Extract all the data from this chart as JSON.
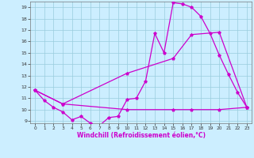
{
  "title": "",
  "xlabel": "Windchill (Refroidissement éolien,°C)",
  "bg_color": "#cceeff",
  "grid_color": "#99ccdd",
  "line_color": "#cc00cc",
  "xlim": [
    -0.5,
    23.5
  ],
  "ylim": [
    8.8,
    19.5
  ],
  "yticks": [
    9,
    10,
    11,
    12,
    13,
    14,
    15,
    16,
    17,
    18,
    19
  ],
  "xticks": [
    0,
    1,
    2,
    3,
    4,
    5,
    6,
    7,
    8,
    9,
    10,
    11,
    12,
    13,
    14,
    15,
    16,
    17,
    18,
    19,
    20,
    21,
    22,
    23
  ],
  "line1_x": [
    0,
    1,
    2,
    3,
    4,
    5,
    6,
    7,
    8,
    9,
    10,
    11,
    12,
    13,
    14,
    15,
    16,
    17,
    18,
    19,
    20,
    21,
    22,
    23
  ],
  "line1_y": [
    11.7,
    10.8,
    10.2,
    9.8,
    9.1,
    9.4,
    8.8,
    8.6,
    9.3,
    9.4,
    10.9,
    11.0,
    12.5,
    16.7,
    15.0,
    19.4,
    19.3,
    19.0,
    18.2,
    16.7,
    14.8,
    13.1,
    11.5,
    10.2
  ],
  "line2_x": [
    0,
    3,
    10,
    15,
    17,
    20,
    23
  ],
  "line2_y": [
    11.7,
    10.5,
    13.2,
    14.5,
    16.6,
    16.8,
    10.2
  ],
  "line3_x": [
    0,
    3,
    10,
    15,
    17,
    20,
    23
  ],
  "line3_y": [
    11.7,
    10.5,
    10.0,
    10.0,
    10.0,
    10.0,
    10.2
  ]
}
